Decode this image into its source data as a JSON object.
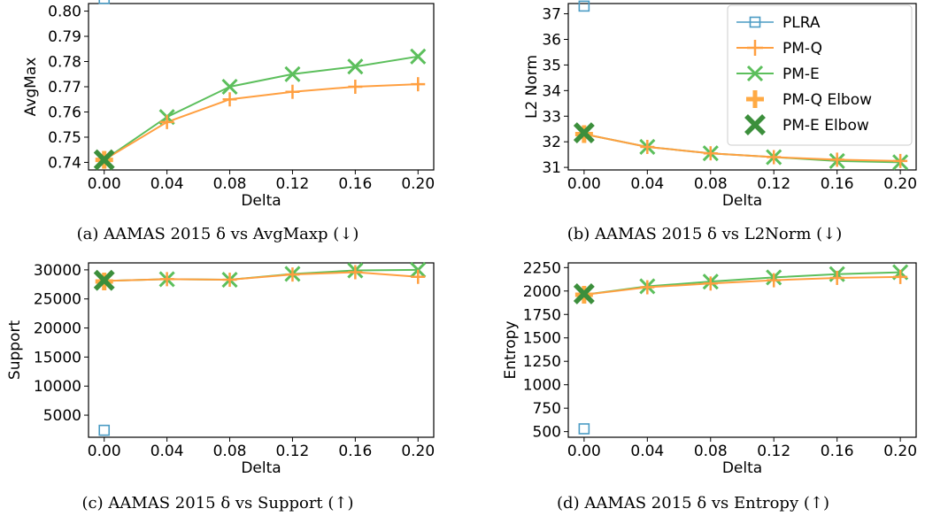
{
  "colors": {
    "plra": "#4a9bc4",
    "pmq": "#ff9f40",
    "pme": "#5cbf5c",
    "pmq_elbow": "#ffaa44",
    "pme_elbow": "#3c8f3c"
  },
  "legend": {
    "entries": [
      "PLRA",
      "PM-Q",
      "PM-E",
      "PM-Q Elbow",
      "PM-E Elbow"
    ],
    "placement": "top-right of panel b"
  },
  "chart_data": [
    {
      "type": "line",
      "caption": "(a) AAMAS 2015 δ vs AvgMaxp (↓)",
      "xlabel": "Delta",
      "ylabel": "AvgMax",
      "x": [
        0.0,
        0.04,
        0.08,
        0.12,
        0.16,
        0.2
      ],
      "x_ticks": [
        "0.00",
        "0.04",
        "0.08",
        "0.12",
        "0.16",
        "0.20"
      ],
      "xlim": [
        -0.01,
        0.21
      ],
      "ylim": [
        0.737,
        0.803
      ],
      "y_ticks": [
        0.74,
        0.75,
        0.76,
        0.77,
        0.78,
        0.79,
        0.8
      ],
      "y_tick_labels": [
        "0.74",
        "0.75",
        "0.76",
        "0.77",
        "0.78",
        "0.79",
        "0.80"
      ],
      "plra": {
        "x": 0.0,
        "y": 0.805
      },
      "series": [
        {
          "name": "PM-Q",
          "values": [
            0.741,
            0.756,
            0.765,
            0.768,
            0.77,
            0.771
          ]
        },
        {
          "name": "PM-E",
          "values": [
            0.741,
            0.758,
            0.77,
            0.775,
            0.778,
            0.782
          ]
        }
      ],
      "pmq_elbow": {
        "x": 0.0,
        "y": 0.741
      },
      "pme_elbow": {
        "x": 0.0,
        "y": 0.741
      }
    },
    {
      "type": "line",
      "caption": "(b) AAMAS 2015 δ vs L2Norm (↓)",
      "xlabel": "Delta",
      "ylabel": "L2 Norm",
      "x": [
        0.0,
        0.04,
        0.08,
        0.12,
        0.16,
        0.2
      ],
      "x_ticks": [
        "0.00",
        "0.04",
        "0.08",
        "0.12",
        "0.16",
        "0.20"
      ],
      "xlim": [
        -0.01,
        0.21
      ],
      "ylim": [
        30.9,
        37.4
      ],
      "y_ticks": [
        31,
        32,
        33,
        34,
        35,
        36,
        37
      ],
      "y_tick_labels": [
        "31",
        "32",
        "33",
        "34",
        "35",
        "36",
        "37"
      ],
      "plra": {
        "x": 0.0,
        "y": 37.3
      },
      "series": [
        {
          "name": "PM-Q",
          "values": [
            32.3,
            31.8,
            31.55,
            31.4,
            31.3,
            31.25
          ]
        },
        {
          "name": "PM-E",
          "values": [
            32.3,
            31.8,
            31.55,
            31.4,
            31.25,
            31.2
          ]
        }
      ],
      "pmq_elbow": {
        "x": 0.0,
        "y": 32.3
      },
      "pme_elbow": {
        "x": 0.0,
        "y": 32.35
      }
    },
    {
      "type": "line",
      "caption": "(c) AAMAS 2015 δ vs Support (↑)",
      "xlabel": "Delta",
      "ylabel": "Support",
      "x": [
        0.0,
        0.04,
        0.08,
        0.12,
        0.16,
        0.2
      ],
      "x_ticks": [
        "0.00",
        "0.04",
        "0.08",
        "0.12",
        "0.16",
        "0.20"
      ],
      "xlim": [
        -0.01,
        0.21
      ],
      "ylim": [
        1200,
        31200
      ],
      "y_ticks": [
        5000,
        10000,
        15000,
        20000,
        25000,
        30000
      ],
      "y_tick_labels": [
        "5000",
        "10000",
        "15000",
        "20000",
        "25000",
        "30000"
      ],
      "plra": {
        "x": 0.0,
        "y": 2400
      },
      "series": [
        {
          "name": "PM-Q",
          "values": [
            28100,
            28400,
            28300,
            29200,
            29600,
            28800
          ]
        },
        {
          "name": "PM-E",
          "values": [
            28100,
            28400,
            28300,
            29300,
            29900,
            30000
          ]
        }
      ],
      "pmq_elbow": {
        "x": 0.0,
        "y": 28000
      },
      "pme_elbow": {
        "x": 0.0,
        "y": 28200
      }
    },
    {
      "type": "line",
      "caption": "(d) AAMAS 2015 δ vs Entropy (↑)",
      "xlabel": "Delta",
      "ylabel": "Entropy",
      "x": [
        0.0,
        0.04,
        0.08,
        0.12,
        0.16,
        0.2
      ],
      "x_ticks": [
        "0.00",
        "0.04",
        "0.08",
        "0.12",
        "0.16",
        "0.20"
      ],
      "xlim": [
        -0.01,
        0.21
      ],
      "ylim": [
        440,
        2300
      ],
      "y_ticks": [
        500,
        750,
        1000,
        1250,
        1500,
        1750,
        2000,
        2250
      ],
      "y_tick_labels": [
        "500",
        "750",
        "1000",
        "1250",
        "1500",
        "1750",
        "2000",
        "2250"
      ],
      "plra": {
        "x": 0.0,
        "y": 530
      },
      "series": [
        {
          "name": "PM-Q",
          "values": [
            1960,
            2040,
            2080,
            2115,
            2140,
            2150
          ]
        },
        {
          "name": "PM-E",
          "values": [
            1960,
            2050,
            2100,
            2145,
            2180,
            2200
          ]
        }
      ],
      "pmq_elbow": {
        "x": 0.0,
        "y": 1960
      },
      "pme_elbow": {
        "x": 0.0,
        "y": 1970
      }
    }
  ]
}
